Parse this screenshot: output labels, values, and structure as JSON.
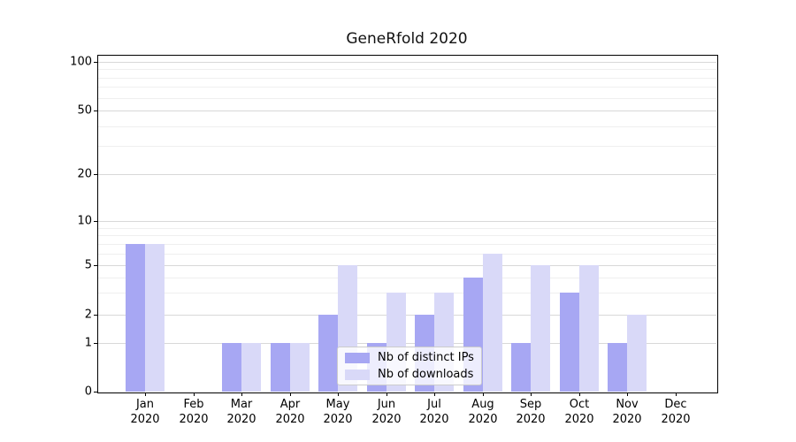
{
  "chart_data": {
    "type": "bar",
    "title": "GeneRfold 2020",
    "categories": [
      "Jan 2020",
      "Feb 2020",
      "Mar 2020",
      "Apr 2020",
      "May 2020",
      "Jun 2020",
      "Jul 2020",
      "Aug 2020",
      "Sep 2020",
      "Oct 2020",
      "Nov 2020",
      "Dec 2020"
    ],
    "series": [
      {
        "name": "Nb of distinct IPs",
        "color": "#a7a7f3",
        "values": [
          7,
          0,
          1,
          1,
          2,
          1,
          2,
          4,
          1,
          3,
          1,
          0
        ]
      },
      {
        "name": "Nb of downloads",
        "color": "#d9d9f8",
        "values": [
          7,
          0,
          1,
          1,
          5,
          3,
          3,
          6,
          5,
          5,
          2,
          0
        ]
      }
    ],
    "xlabel": "",
    "ylabel": "",
    "yscale": "symlog",
    "yticks": [
      0,
      1,
      2,
      5,
      10,
      20,
      50,
      100
    ],
    "minor_gridlines": [
      3,
      4,
      6,
      7,
      8,
      9,
      30,
      40,
      60,
      70,
      80,
      90
    ],
    "ylim": [
      0,
      110
    ],
    "grid": "horizontal",
    "legend_position": "lower center"
  }
}
